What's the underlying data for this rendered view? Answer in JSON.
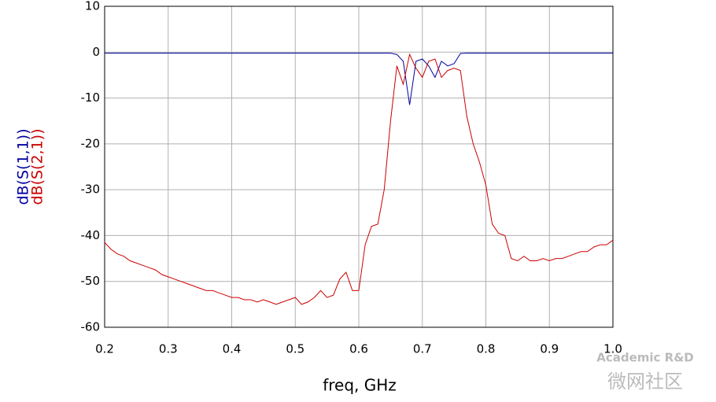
{
  "chart_data": {
    "type": "line",
    "x_label": "freq, GHz",
    "x": [
      0.2,
      0.21,
      0.22,
      0.23,
      0.24,
      0.25,
      0.26,
      0.27,
      0.28,
      0.29,
      0.3,
      0.31,
      0.32,
      0.33,
      0.34,
      0.35,
      0.36,
      0.37,
      0.38,
      0.39,
      0.4,
      0.41,
      0.42,
      0.43,
      0.44,
      0.45,
      0.46,
      0.47,
      0.48,
      0.49,
      0.5,
      0.51,
      0.52,
      0.53,
      0.54,
      0.55,
      0.56,
      0.57,
      0.58,
      0.59,
      0.6,
      0.61,
      0.62,
      0.63,
      0.64,
      0.65,
      0.66,
      0.67,
      0.68,
      0.69,
      0.7,
      0.71,
      0.72,
      0.73,
      0.74,
      0.75,
      0.76,
      0.77,
      0.78,
      0.79,
      0.8,
      0.81,
      0.82,
      0.83,
      0.84,
      0.85,
      0.86,
      0.87,
      0.88,
      0.89,
      0.9,
      0.91,
      0.92,
      0.93,
      0.94,
      0.95,
      0.96,
      0.97,
      0.98,
      0.99,
      1.0
    ],
    "series": [
      {
        "name": "dB(S(1,1))",
        "color": "#0000a0",
        "values": [
          -0.2,
          -0.2,
          -0.2,
          -0.2,
          -0.2,
          -0.2,
          -0.2,
          -0.2,
          -0.2,
          -0.2,
          -0.2,
          -0.2,
          -0.2,
          -0.2,
          -0.2,
          -0.2,
          -0.2,
          -0.2,
          -0.2,
          -0.2,
          -0.2,
          -0.2,
          -0.2,
          -0.2,
          -0.2,
          -0.2,
          -0.2,
          -0.2,
          -0.2,
          -0.2,
          -0.2,
          -0.2,
          -0.2,
          -0.2,
          -0.2,
          -0.2,
          -0.2,
          -0.2,
          -0.2,
          -0.2,
          -0.2,
          -0.2,
          -0.2,
          -0.2,
          -0.2,
          -0.2,
          -0.5,
          -2,
          -11.5,
          -2,
          -1.5,
          -3,
          -5.5,
          -2,
          -3,
          -2.5,
          -0.3,
          -0.2,
          -0.2,
          -0.2,
          -0.2,
          -0.2,
          -0.2,
          -0.2,
          -0.2,
          -0.2,
          -0.2,
          -0.2,
          -0.2,
          -0.2,
          -0.2,
          -0.2,
          -0.2,
          -0.2,
          -0.2,
          -0.2,
          -0.2,
          -0.2,
          -0.2,
          -0.2,
          -0.2
        ]
      },
      {
        "name": "dB(S(2,1))",
        "color": "#cc0000",
        "values": [
          -41.5,
          -43,
          -44,
          -44.5,
          -45.5,
          -46,
          -46.5,
          -47,
          -47.5,
          -48.5,
          -49,
          -49.5,
          -50,
          -50.5,
          -51,
          -51.5,
          -52,
          -52,
          -52.5,
          -53,
          -53.5,
          -53.5,
          -54,
          -54,
          -54.5,
          -54,
          -54.5,
          -55,
          -54.5,
          -54,
          -53.5,
          -55,
          -54.5,
          -53.5,
          -52,
          -53.5,
          -53,
          -49.5,
          -48,
          -52,
          -52,
          -42,
          -38,
          -37.5,
          -30,
          -15,
          -3,
          -7,
          -0.5,
          -3.5,
          -5.5,
          -2,
          -1.5,
          -5.5,
          -4,
          -3.5,
          -4,
          -14,
          -20,
          -24,
          -29,
          -37.5,
          -39.5,
          -40,
          -45,
          -45.5,
          -44.5,
          -45.5,
          -45.5,
          -45,
          -45.5,
          -45,
          -45,
          -44.5,
          -44,
          -43.5,
          -43.5,
          -42.5,
          -42,
          -42,
          -41
        ]
      }
    ],
    "xlim": [
      0.2,
      1.0
    ],
    "ylim": [
      -60,
      10
    ],
    "xticks": [
      0.2,
      0.3,
      0.4,
      0.5,
      0.6,
      0.7,
      0.8,
      0.9,
      {
        "value": 1,
        "label": "1.0"
      }
    ],
    "yticks": [
      -60,
      -50,
      -40,
      -30,
      -20,
      -10,
      0,
      10
    ],
    "grid": true,
    "watermark": [
      "Academic R&D",
      "微网社区"
    ]
  }
}
